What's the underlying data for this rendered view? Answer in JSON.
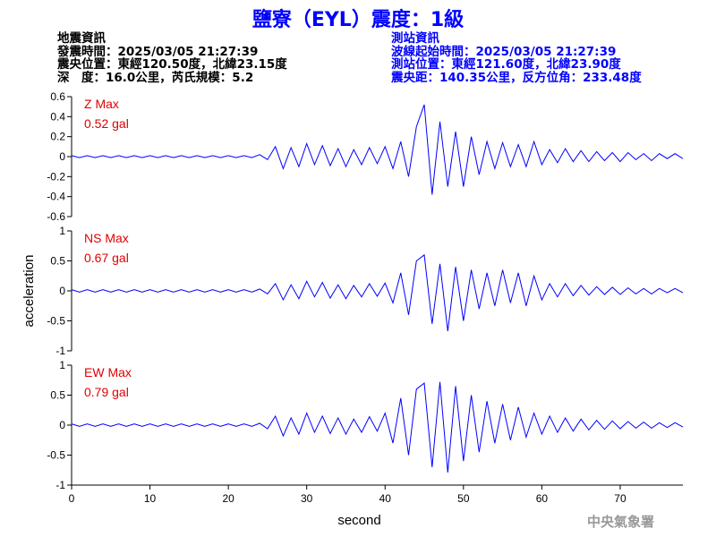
{
  "header": {
    "title": "鹽寮（EYL）震度：1級",
    "left": [
      "地震資訊",
      "發震時間：2025/03/05 21:27:39",
      "震央位置：東經120.50度，北緯23.15度",
      "深　度：16.0公里，芮氏規模：5.2"
    ],
    "right": [
      "測站資訊",
      "波線起始時間：2025/03/05 21:27:39",
      "測站位置：東經121.60度，北緯23.90度",
      "震央距：140.35公里，反方位角：233.48度"
    ]
  },
  "footer": "中央氣象署",
  "chart_data": [
    {
      "type": "line",
      "annotations": [
        "Z Max",
        "0.52 gal"
      ],
      "color": "#0000ff",
      "x": [
        0,
        1,
        2,
        3,
        4,
        5,
        6,
        7,
        8,
        9,
        10,
        11,
        12,
        13,
        14,
        15,
        16,
        17,
        18,
        19,
        20,
        21,
        22,
        23,
        24,
        25,
        26,
        27,
        28,
        29,
        30,
        31,
        32,
        33,
        34,
        35,
        36,
        37,
        38,
        39,
        40,
        41,
        42,
        43,
        44,
        45,
        46,
        47,
        48,
        49,
        50,
        51,
        52,
        53,
        54,
        55,
        56,
        57,
        58,
        59,
        60,
        61,
        62,
        63,
        64,
        65,
        66,
        67,
        68,
        69,
        70,
        71,
        72,
        73,
        74,
        75,
        76,
        77,
        78
      ],
      "values": [
        0.01,
        -0.01,
        0.01,
        -0.01,
        0.01,
        -0.01,
        0.01,
        -0.01,
        0.01,
        -0.01,
        0.01,
        -0.01,
        0.01,
        -0.01,
        0.01,
        -0.01,
        0.01,
        -0.01,
        0.01,
        -0.01,
        0.01,
        -0.01,
        0.01,
        -0.01,
        0.02,
        -0.03,
        0.1,
        -0.12,
        0.09,
        -0.1,
        0.13,
        -0.08,
        0.11,
        -0.09,
        0.08,
        -0.1,
        0.07,
        -0.08,
        0.09,
        -0.07,
        0.1,
        -0.12,
        0.15,
        -0.2,
        0.3,
        0.52,
        -0.38,
        0.35,
        -0.3,
        0.25,
        -0.3,
        0.2,
        -0.18,
        0.15,
        -0.12,
        0.14,
        -0.1,
        0.12,
        -0.1,
        0.15,
        -0.08,
        0.07,
        -0.06,
        0.08,
        -0.05,
        0.06,
        -0.05,
        0.05,
        -0.04,
        0.04,
        -0.05,
        0.04,
        -0.03,
        0.03,
        -0.04,
        0.03,
        -0.02,
        0.03,
        -0.02
      ],
      "xlim": [
        0,
        78
      ],
      "ylim": [
        -0.6,
        0.6
      ],
      "yticks": [
        0.6,
        0.4,
        0.2,
        0,
        -0.2,
        -0.4,
        -0.6
      ]
    },
    {
      "type": "line",
      "annotations": [
        "NS Max",
        "0.67 gal"
      ],
      "color": "#0000ff",
      "ylabel": "acceleration",
      "x": [
        0,
        1,
        2,
        3,
        4,
        5,
        6,
        7,
        8,
        9,
        10,
        11,
        12,
        13,
        14,
        15,
        16,
        17,
        18,
        19,
        20,
        21,
        22,
        23,
        24,
        25,
        26,
        27,
        28,
        29,
        30,
        31,
        32,
        33,
        34,
        35,
        36,
        37,
        38,
        39,
        40,
        41,
        42,
        43,
        44,
        45,
        46,
        47,
        48,
        49,
        50,
        51,
        52,
        53,
        54,
        55,
        56,
        57,
        58,
        59,
        60,
        61,
        62,
        63,
        64,
        65,
        66,
        67,
        68,
        69,
        70,
        71,
        72,
        73,
        74,
        75,
        76,
        77,
        78
      ],
      "values": [
        0.02,
        -0.02,
        0.02,
        -0.02,
        0.02,
        -0.02,
        0.02,
        -0.02,
        0.02,
        -0.02,
        0.02,
        -0.02,
        0.02,
        -0.02,
        0.02,
        -0.02,
        0.02,
        -0.02,
        0.02,
        -0.02,
        0.02,
        -0.02,
        0.02,
        -0.02,
        0.03,
        -0.05,
        0.12,
        -0.15,
        0.1,
        -0.13,
        0.16,
        -0.1,
        0.14,
        -0.12,
        0.1,
        -0.13,
        0.09,
        -0.1,
        0.12,
        -0.09,
        0.13,
        -0.2,
        0.3,
        -0.4,
        0.5,
        0.6,
        -0.55,
        0.45,
        -0.67,
        0.4,
        -0.5,
        0.35,
        -0.3,
        0.3,
        -0.25,
        0.35,
        -0.2,
        0.3,
        -0.25,
        0.25,
        -0.15,
        0.12,
        -0.1,
        0.12,
        -0.08,
        0.09,
        -0.07,
        0.07,
        -0.06,
        0.06,
        -0.06,
        0.05,
        -0.05,
        0.04,
        -0.05,
        0.04,
        -0.03,
        0.04,
        -0.03
      ],
      "xlim": [
        0,
        78
      ],
      "ylim": [
        -1,
        1
      ],
      "yticks": [
        1,
        0.5,
        0,
        -0.5,
        -1
      ]
    },
    {
      "type": "line",
      "annotations": [
        "EW Max",
        "0.79 gal"
      ],
      "color": "#0000ff",
      "xlabel": "second",
      "x": [
        0,
        1,
        2,
        3,
        4,
        5,
        6,
        7,
        8,
        9,
        10,
        11,
        12,
        13,
        14,
        15,
        16,
        17,
        18,
        19,
        20,
        21,
        22,
        23,
        24,
        25,
        26,
        27,
        28,
        29,
        30,
        31,
        32,
        33,
        34,
        35,
        36,
        37,
        38,
        39,
        40,
        41,
        42,
        43,
        44,
        45,
        46,
        47,
        48,
        49,
        50,
        51,
        52,
        53,
        54,
        55,
        56,
        57,
        58,
        59,
        60,
        61,
        62,
        63,
        64,
        65,
        66,
        67,
        68,
        69,
        70,
        71,
        72,
        73,
        74,
        75,
        76,
        77,
        78
      ],
      "values": [
        0.02,
        -0.02,
        0.02,
        -0.02,
        0.02,
        -0.02,
        0.02,
        -0.02,
        0.02,
        -0.02,
        0.02,
        -0.02,
        0.02,
        -0.02,
        0.02,
        -0.02,
        0.02,
        -0.02,
        0.02,
        -0.02,
        0.02,
        -0.02,
        0.02,
        -0.02,
        0.03,
        -0.06,
        0.15,
        -0.18,
        0.12,
        -0.15,
        0.2,
        -0.12,
        0.15,
        -0.14,
        0.12,
        -0.15,
        0.1,
        -0.12,
        0.14,
        -0.1,
        0.2,
        -0.3,
        0.45,
        -0.5,
        0.6,
        0.7,
        -0.7,
        0.72,
        -0.79,
        0.65,
        -0.6,
        0.5,
        -0.45,
        0.4,
        -0.3,
        0.35,
        -0.25,
        0.3,
        -0.2,
        0.2,
        -0.15,
        0.15,
        -0.12,
        0.12,
        -0.1,
        0.1,
        -0.08,
        0.08,
        -0.07,
        0.07,
        -0.06,
        0.06,
        -0.05,
        0.05,
        -0.05,
        0.04,
        -0.04,
        0.04,
        -0.03
      ],
      "xlim": [
        0,
        78
      ],
      "ylim": [
        -1,
        1
      ],
      "yticks": [
        1,
        0.5,
        0,
        -0.5,
        -1
      ],
      "xticks": [
        0,
        10,
        20,
        30,
        40,
        50,
        60,
        70
      ]
    }
  ]
}
